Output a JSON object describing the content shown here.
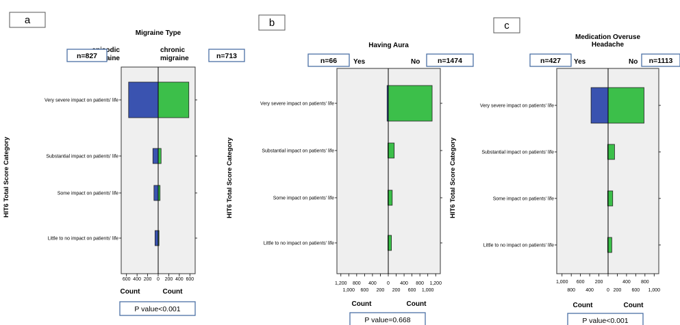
{
  "colors": {
    "left_bar": "#3a53b0",
    "right_bar": "#3cbf4a",
    "plot_bg": "#efefef",
    "box_border": "#4a6fa5"
  },
  "chart_data": [
    {
      "type": "bar",
      "panel": "a",
      "title_lines": [
        "Migraine Type"
      ],
      "left_group": {
        "label_lines": [
          "episodic",
          "migraine"
        ],
        "n_label": "n=827"
      },
      "right_group": {
        "label_lines": [
          "chronic",
          "migraine"
        ],
        "n_label": "n=713"
      },
      "ylabel": "HIT6 Total Score Category",
      "categories": [
        "Very severe impact on patients' life",
        "Substantial impact on patients' life",
        "Some impact on patients' life",
        "Little to no impact on patients' life"
      ],
      "series": [
        {
          "name": "episodic migraine",
          "side": "left",
          "values": [
            560,
            100,
            80,
            60
          ]
        },
        {
          "name": "chronic migraine",
          "side": "right",
          "values": [
            580,
            55,
            35,
            15
          ]
        }
      ],
      "xlim": [
        -700,
        700
      ],
      "left_ticks": [
        "600",
        "400",
        "200",
        "0"
      ],
      "right_ticks": [
        "0",
        "200",
        "400",
        "600"
      ],
      "xlabel_left": "Count",
      "xlabel_right": "Count",
      "p_value": "P value<0.001"
    },
    {
      "type": "bar",
      "panel": "b",
      "title_lines": [
        "Having Aura"
      ],
      "left_group": {
        "label_lines": [
          "Yes"
        ],
        "n_label": "n=66"
      },
      "right_group": {
        "label_lines": [
          "No"
        ],
        "n_label": "n=1474"
      },
      "ylabel": "HIT6 Total Score Category",
      "categories": [
        "Very severe impact on patients' life",
        "Substantial impact on patients' life",
        "Some impact on patients' life",
        "Little to no impact on patients' life"
      ],
      "series": [
        {
          "name": "Yes",
          "side": "left",
          "values": [
            30,
            10,
            10,
            10
          ]
        },
        {
          "name": "No",
          "side": "right",
          "values": [
            1110,
            150,
            100,
            80
          ]
        }
      ],
      "xlim": [
        -1300,
        1300
      ],
      "left_ticks": [
        "1,200",
        "1,000",
        "800",
        "600",
        "400",
        "200",
        "0"
      ],
      "right_ticks": [
        "0",
        "200",
        "400",
        "600",
        "800",
        "1,000",
        "1,200"
      ],
      "xlabel_left": "Count",
      "xlabel_right": "Count",
      "p_value": "P value=0.668"
    },
    {
      "type": "bar",
      "panel": "c",
      "title_lines": [
        "Medication Overuse",
        "Headache"
      ],
      "left_group": {
        "label_lines": [
          "Yes"
        ],
        "n_label": "n=427"
      },
      "right_group": {
        "label_lines": [
          "No"
        ],
        "n_label": "n=1113"
      },
      "ylabel": "HIT6 Total Score Category",
      "categories": [
        "Very severe impact on patients' life",
        "Substantial impact on patients' life",
        "Some impact on patients' life",
        "Little to no impact on patients' life"
      ],
      "series": [
        {
          "name": "Yes",
          "side": "left",
          "values": [
            370,
            10,
            10,
            10
          ]
        },
        {
          "name": "No",
          "side": "right",
          "values": [
            780,
            140,
            100,
            80
          ]
        }
      ],
      "xlim": [
        -1100,
        1100
      ],
      "left_ticks": [
        "1,000",
        "800",
        "600",
        "400",
        "200",
        "0"
      ],
      "right_ticks": [
        "0",
        "200",
        "400",
        "600",
        "800",
        "1,000"
      ],
      "xlabel_left": "Count",
      "xlabel_right": "Count",
      "p_value": "P value<0.001"
    }
  ]
}
